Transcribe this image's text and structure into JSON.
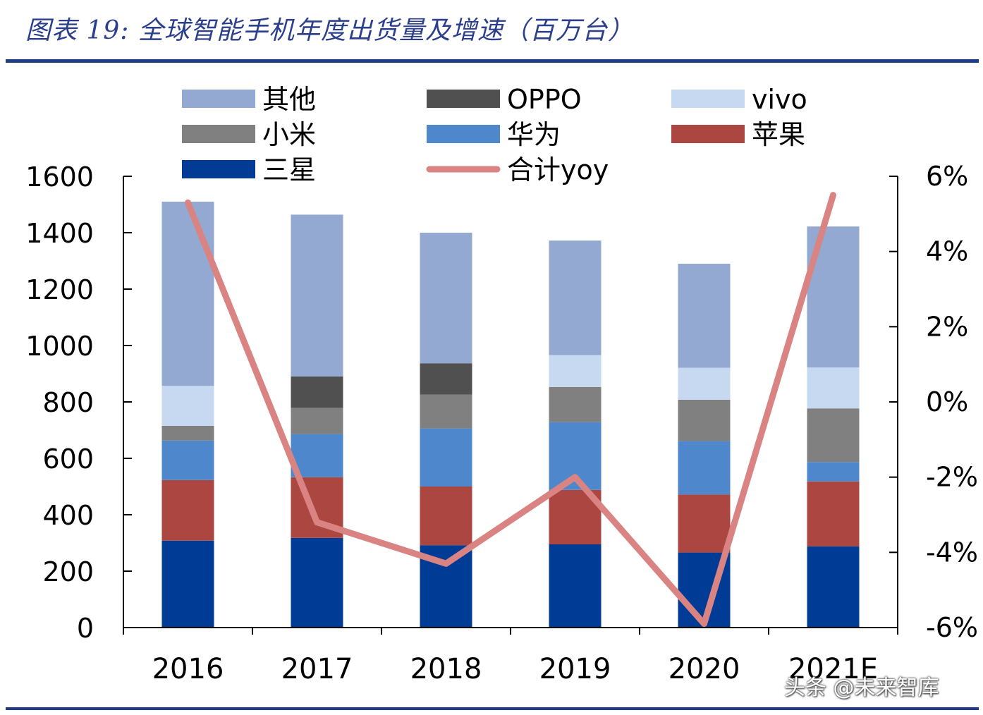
{
  "title": "图表 19: 全球智能手机年度出货量及增速（百万台）",
  "colors": {
    "title": "#2b3f8c",
    "rule": "#1f3c88",
    "axis": "#000000"
  },
  "watermark": "头条 @未来智库",
  "chart_data": {
    "type": "bar",
    "stacked": true,
    "categories": [
      "2016",
      "2017",
      "2018",
      "2019",
      "2020",
      "2021E"
    ],
    "ylim": [
      0,
      1600
    ],
    "yticks": [
      0,
      200,
      400,
      600,
      800,
      1000,
      1200,
      1400,
      1600
    ],
    "y2lim": [
      -6,
      6
    ],
    "y2ticks": [
      "-6%",
      "-4%",
      "-2%",
      "0%",
      "2%",
      "4%",
      "6%"
    ],
    "y2tick_values": [
      -6,
      -4,
      -2,
      0,
      2,
      4,
      6
    ],
    "legend_position": "top",
    "series": [
      {
        "name": "三星",
        "color": "#003b96",
        "values": [
          308,
          318,
          292,
          295,
          266,
          288
        ]
      },
      {
        "name": "苹果",
        "color": "#ac4640",
        "values": [
          215,
          215,
          208,
          193,
          206,
          230
        ]
      },
      {
        "name": "华为",
        "color": "#4f87cc",
        "values": [
          140,
          153,
          206,
          240,
          189,
          69
        ]
      },
      {
        "name": "小米",
        "color": "#808080",
        "values": [
          52,
          93,
          120,
          125,
          147,
          190
        ]
      },
      {
        "name": "vivo",
        "color": "#c6d9f0",
        "values": [
          142,
          0,
          0,
          113,
          113,
          145
        ]
      },
      {
        "name": "OPPO",
        "color": "#505050",
        "values": [
          0,
          111,
          111,
          0,
          0,
          0
        ]
      },
      {
        "name": "其他",
        "color": "#93a9d2",
        "values": [
          653,
          574,
          463,
          406,
          369,
          500
        ]
      }
    ],
    "line_series": {
      "name": "合计yoy",
      "color": "#d98483",
      "axis": "right",
      "values": [
        5.3,
        -3.2,
        -4.3,
        -2.0,
        -5.9,
        5.5
      ]
    }
  }
}
